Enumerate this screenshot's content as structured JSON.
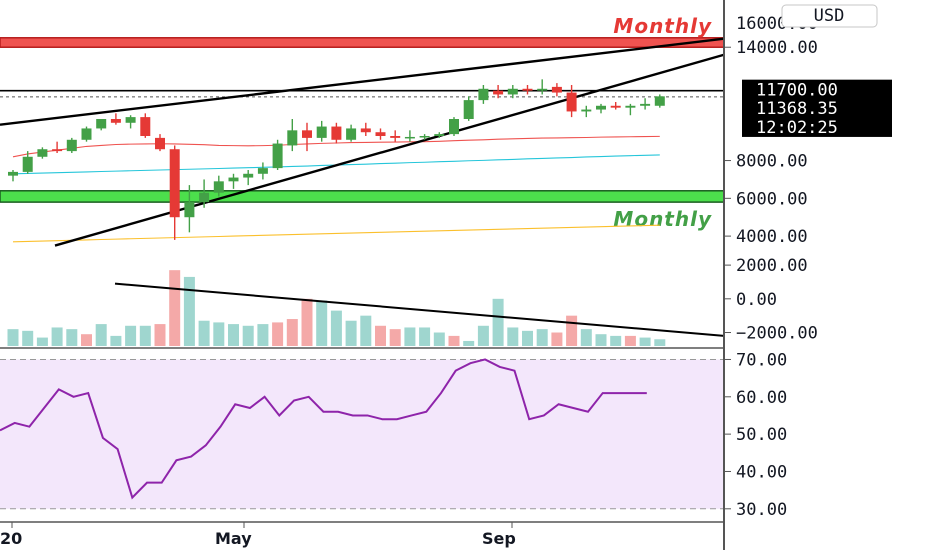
{
  "currency_button": "USD",
  "price_axis": {
    "top_partial_label": "16000.00",
    "ticks": [
      "14000.00",
      "8000.00",
      "6000.00",
      "4000.00"
    ],
    "tags": [
      {
        "label": "11700.00",
        "color": "#000000"
      },
      {
        "label": "11368.35",
        "color": "#000000"
      },
      {
        "label": "12:02:25",
        "color": "#000000"
      }
    ]
  },
  "volume_axis": {
    "ticks": [
      "2000.00",
      "0.00",
      "−2000.00"
    ]
  },
  "rsi_axis": {
    "ticks": [
      "70.00",
      "60.00",
      "50.00",
      "40.00",
      "30.00"
    ]
  },
  "time_axis": {
    "labels": [
      "20",
      "May",
      "Sep"
    ]
  },
  "zones": {
    "resistance": {
      "label": "Monthly",
      "color": "#e53935",
      "fill": "#ef5350"
    },
    "support": {
      "label": "Monthly",
      "color": "#43a047",
      "fill": "#4cdf4c"
    }
  },
  "chart_data": [
    {
      "type": "candlestick",
      "title": "",
      "ylim": [
        3000,
        16500
      ],
      "levels": {
        "resistance_zone": [
          14000,
          14500
        ],
        "support_zone": [
          5800,
          6400
        ],
        "horizontal_line": 11700,
        "last_price": 11368.35
      },
      "series": [
        {
          "values": [
            [
              7200,
              7500,
              6900,
              7400
            ],
            [
              7400,
              8500,
              7300,
              8200
            ],
            [
              8200,
              8700,
              8100,
              8600
            ],
            [
              8600,
              9000,
              8400,
              8500
            ],
            [
              8500,
              9200,
              8400,
              9100
            ],
            [
              9100,
              9800,
              9000,
              9700
            ],
            [
              9700,
              10200,
              9600,
              10200
            ],
            [
              10200,
              10500,
              9900,
              10000
            ],
            [
              10000,
              10400,
              9700,
              10300
            ],
            [
              10300,
              10500,
              9200,
              9300
            ],
            [
              9200,
              9400,
              8500,
              8600
            ],
            [
              8600,
              8800,
              3800,
              5000
            ],
            [
              5000,
              6700,
              4200,
              5800
            ],
            [
              5800,
              7000,
              5500,
              6300
            ],
            [
              6300,
              7200,
              6100,
              6900
            ],
            [
              6900,
              7300,
              6500,
              7100
            ],
            [
              7100,
              7500,
              6700,
              7300
            ],
            [
              7300,
              7900,
              7000,
              7600
            ],
            [
              7600,
              9100,
              7500,
              8900
            ],
            [
              8800,
              10200,
              8500,
              9600
            ],
            [
              9600,
              10000,
              8500,
              9200
            ],
            [
              9200,
              10100,
              9000,
              9800
            ],
            [
              9800,
              10000,
              8900,
              9100
            ],
            [
              9100,
              9900,
              9000,
              9700
            ],
            [
              9700,
              10000,
              9300,
              9500
            ],
            [
              9500,
              9700,
              9100,
              9300
            ],
            [
              9300,
              9600,
              9000,
              9200
            ],
            [
              9200,
              9600,
              9000,
              9250
            ],
            [
              9250,
              9400,
              9100,
              9300
            ],
            [
              9300,
              9500,
              9200,
              9400
            ],
            [
              9400,
              10300,
              9300,
              10200
            ],
            [
              10200,
              11400,
              10100,
              11200
            ],
            [
              11200,
              12000,
              11000,
              11800
            ],
            [
              11700,
              12000,
              11300,
              11500
            ],
            [
              11500,
              12000,
              11300,
              11800
            ],
            [
              11800,
              12000,
              11500,
              11700
            ],
            [
              11700,
              12300,
              11500,
              11800
            ],
            [
              11900,
              12100,
              11400,
              11600
            ],
            [
              11600,
              12000,
              10300,
              10600
            ],
            [
              10600,
              10900,
              10300,
              10700
            ],
            [
              10700,
              11000,
              10500,
              10900
            ],
            [
              10900,
              11100,
              10700,
              10800
            ],
            [
              10800,
              11000,
              10400,
              10900
            ],
            [
              10900,
              11300,
              10700,
              11000
            ],
            [
              10900,
              11500,
              10800,
              11400
            ]
          ]
        },
        {
          "name": "",
          "values": [
            8200,
            8350,
            8450,
            8550,
            8650,
            8750,
            8800,
            8850,
            8870,
            8880,
            8890,
            8880,
            8860,
            8840,
            8800,
            8790,
            8780,
            8790,
            8810,
            8850,
            8880,
            8910,
            8930,
            8950,
            8960,
            8970,
            8980,
            8990,
            9000,
            9020,
            9050,
            9080,
            9100,
            9130,
            9150,
            9170,
            9190,
            9200,
            9210,
            9220,
            9240,
            9250,
            9260,
            9270,
            9280
          ]
        },
        {
          "name": "",
          "values": [
            7300,
            7320,
            7340,
            7360,
            7380,
            7400,
            7420,
            7440,
            7460,
            7480,
            7500,
            7520,
            7540,
            7560,
            7580,
            7600,
            7620,
            7640,
            7660,
            7690,
            7710,
            7740,
            7760,
            7790,
            7810,
            7840,
            7860,
            7890,
            7910,
            7940,
            7960,
            7990,
            8010,
            8040,
            8060,
            8090,
            8110,
            8140,
            8160,
            8190,
            8210,
            8240,
            8260,
            8280,
            8300
          ]
        },
        {
          "name": "",
          "values": [
            3700,
            3720,
            3740,
            3760,
            3780,
            3800,
            3820,
            3840,
            3860,
            3880,
            3900,
            3920,
            3940,
            3960,
            3980,
            4000,
            4020,
            4040,
            4060,
            4080,
            4100,
            4120,
            4140,
            4160,
            4180,
            4200,
            4220,
            4240,
            4260,
            4280,
            4300,
            4320,
            4340,
            4360,
            4380,
            4400,
            4420,
            4440,
            4460,
            4480,
            4500,
            4520,
            4540,
            4560,
            4580
          ]
        }
      ]
    },
    {
      "type": "bar",
      "title": "",
      "ylim": [
        -2800,
        2600
      ],
      "values": [
        -1800,
        -1900,
        -2300,
        -1700,
        -1800,
        -2100,
        -1500,
        -2200,
        -1600,
        -1600,
        -1500,
        1700,
        1300,
        -1300,
        -1400,
        -1500,
        -1600,
        -1500,
        -1400,
        -1200,
        0,
        -100,
        -700,
        -1300,
        -1000,
        -1600,
        -1800,
        -1700,
        -1700,
        -2000,
        -2200,
        -2500,
        -1600,
        0,
        -1700,
        -1900,
        -1800,
        -2000,
        -1000,
        -1800,
        -2100,
        -2200,
        -2200,
        -2300,
        -2400
      ],
      "bar_colors": [
        "teal",
        "teal",
        "teal",
        "teal",
        "teal",
        "salmon",
        "teal",
        "teal",
        "teal",
        "teal",
        "salmon",
        "salmon",
        "teal",
        "teal",
        "teal",
        "teal",
        "teal",
        "teal",
        "salmon",
        "salmon",
        "salmon",
        "teal",
        "teal",
        "teal",
        "teal",
        "salmon",
        "salmon",
        "teal",
        "teal",
        "teal",
        "salmon",
        "teal",
        "teal",
        "teal",
        "teal",
        "teal",
        "teal",
        "salmon",
        "salmon",
        "teal",
        "teal",
        "teal",
        "salmon",
        "teal",
        "teal"
      ]
    },
    {
      "type": "line",
      "title": "",
      "ylim": [
        27,
        72
      ],
      "band": [
        30,
        70
      ],
      "values": [
        51,
        53,
        52,
        57,
        62,
        60,
        61,
        49,
        46,
        33,
        37,
        37,
        43,
        44,
        47,
        52,
        58,
        57,
        60,
        55,
        59,
        60,
        56,
        56,
        55,
        55,
        54,
        54,
        55,
        56,
        61,
        67,
        69,
        70,
        68,
        67,
        54,
        55,
        58,
        57,
        56,
        61,
        61,
        61,
        61
      ]
    }
  ]
}
